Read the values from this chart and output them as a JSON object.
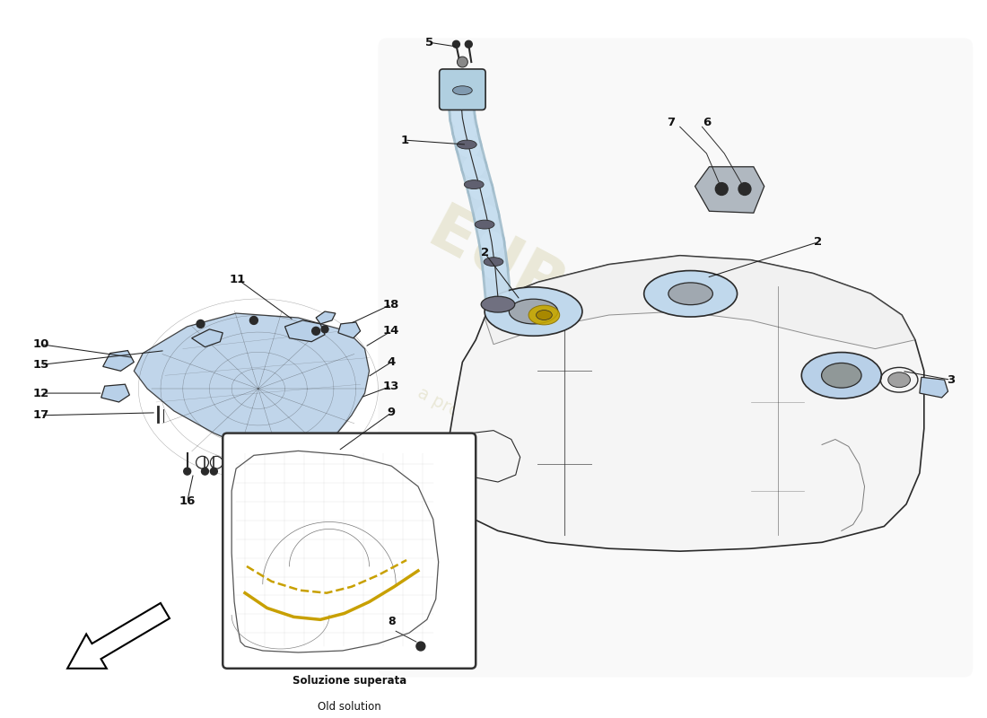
{
  "bg_color": "#ffffff",
  "part_color_blue": "#b8d0e8",
  "part_color_light_blue": "#c8dff0",
  "line_color": "#2a2a2a",
  "label_color": "#111111",
  "watermark_color": "#d0cc9a",
  "caption_line1": "Soluzione superata",
  "caption_line2": "Old solution",
  "figsize": [
    11.0,
    8.0
  ],
  "dpi": 100,
  "xlim": [
    0,
    11
  ],
  "ylim": [
    0,
    8
  ]
}
